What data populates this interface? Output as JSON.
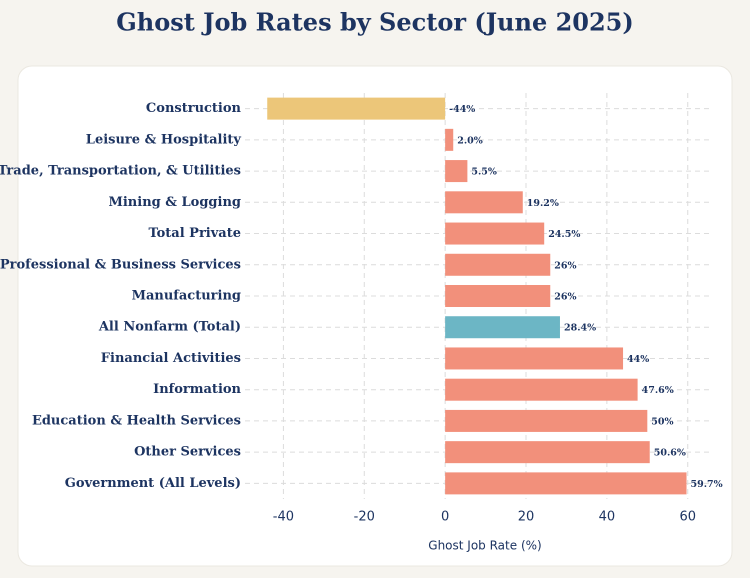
{
  "chart_data": {
    "type": "bar",
    "orientation": "horizontal",
    "title": "Ghost Job Rates by Sector (June 2025)",
    "categories": [
      "Construction",
      "Leisure & Hospitality",
      "Trade, Transportation, & Utilities",
      "Mining & Logging",
      "Total Private",
      "Professional & Business Services",
      "Manufacturing",
      "All Nonfarm (Total)",
      "Financial Activities",
      "Information",
      "Education & Health Services",
      "Other Services",
      "Government (All Levels)"
    ],
    "values": [
      -44,
      2.0,
      5.5,
      19.2,
      24.5,
      26,
      26,
      28.4,
      44,
      47.6,
      50,
      50.6,
      59.7
    ],
    "value_labels": [
      "-44%",
      "2.0%",
      "5.5%",
      "19.2%",
      "24.5%",
      "26%",
      "26%",
      "28.4%",
      "44%",
      "47.6%",
      "50%",
      "50.6%",
      "59.7%"
    ],
    "colors": [
      "#ecc679",
      "#f2907b",
      "#f2907b",
      "#f2907b",
      "#f2907b",
      "#f2907b",
      "#f2907b",
      "#6cb6c5",
      "#f2907b",
      "#f2907b",
      "#f2907b",
      "#f2907b",
      "#f2907b"
    ],
    "xlabel": "Ghost Job Rate (%)",
    "xlim": [
      -49.5,
      66
    ],
    "xticks": [
      -40,
      -20,
      0,
      20,
      40,
      60
    ],
    "grid": true
  }
}
